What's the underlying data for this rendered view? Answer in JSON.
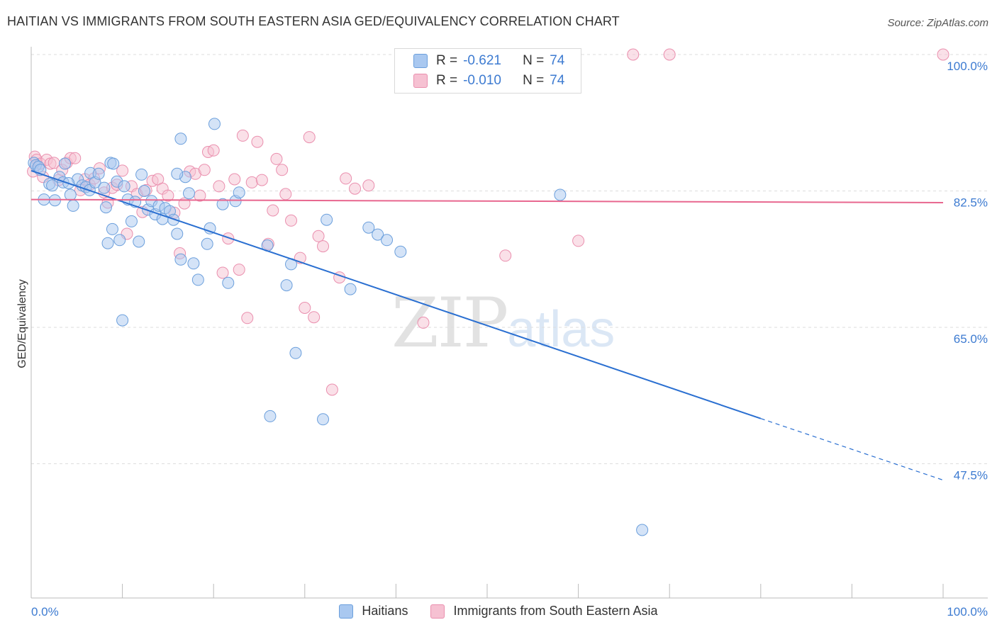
{
  "title": "HAITIAN VS IMMIGRANTS FROM SOUTH EASTERN ASIA GED/EQUIVALENCY CORRELATION CHART",
  "source": "Source: ZipAtlas.com",
  "watermark": {
    "zip": "ZIP",
    "atlas": "atlas"
  },
  "legend_top": [
    {
      "r_label": "R =",
      "r_value": "-0.621",
      "n_label": "N =",
      "n_value": "74"
    },
    {
      "r_label": "R =",
      "r_value": "-0.010",
      "n_label": "N =",
      "n_value": "74"
    }
  ],
  "colors": {
    "blue_fill": "#a9c8f0",
    "blue_stroke": "#6b9fdc",
    "blue_line": "#2a6fd1",
    "pink_fill": "#f6c1d2",
    "pink_stroke": "#ea8fae",
    "pink_line": "#e8678f",
    "tick_text": "#3d7bd1",
    "grid": "#dddddd"
  },
  "chart_data": {
    "type": "scatter",
    "title": "HAITIAN VS IMMIGRANTS FROM SOUTH EASTERN ASIA GED/EQUIVALENCY CORRELATION CHART",
    "xlabel": "",
    "ylabel": "GED/Equivalency",
    "xlim": [
      0,
      100
    ],
    "ylim": [
      35,
      102
    ],
    "x_tick_labels": [
      "0.0%",
      "100.0%"
    ],
    "y_ticks": [
      47.5,
      65.0,
      82.5,
      100.0
    ],
    "y_tick_labels": [
      "47.5%",
      "65.0%",
      "82.5%",
      "100.0%"
    ],
    "grid": "horizontal dashed",
    "legend_position": "bottom",
    "series": [
      {
        "name": "Haitians",
        "r": -0.621,
        "n": 74,
        "trend": {
          "x": [
            0,
            80
          ],
          "y": [
            85.1,
            53.3
          ],
          "dashed_to": [
            100,
            45.4
          ]
        },
        "points": [
          [
            0.3,
            86.1
          ],
          [
            0.5,
            85.8
          ],
          [
            0.8,
            85.6
          ],
          [
            1.0,
            85.2
          ],
          [
            1.4,
            81.4
          ],
          [
            2.0,
            83.4
          ],
          [
            2.3,
            83.2
          ],
          [
            2.6,
            81.3
          ],
          [
            3.1,
            84.3
          ],
          [
            3.5,
            83.6
          ],
          [
            3.7,
            86.0
          ],
          [
            4.3,
            82.0
          ],
          [
            4.6,
            80.6
          ],
          [
            5.1,
            84.0
          ],
          [
            5.6,
            83.2
          ],
          [
            6.0,
            83.0
          ],
          [
            6.4,
            82.6
          ],
          [
            6.5,
            84.8
          ],
          [
            7.0,
            83.6
          ],
          [
            7.4,
            84.7
          ],
          [
            8.0,
            82.9
          ],
          [
            8.2,
            80.4
          ],
          [
            8.4,
            75.8
          ],
          [
            8.7,
            86.1
          ],
          [
            8.9,
            77.6
          ],
          [
            9.4,
            83.7
          ],
          [
            9.7,
            76.2
          ],
          [
            10.0,
            65.9
          ],
          [
            10.2,
            83.1
          ],
          [
            10.6,
            81.4
          ],
          [
            11.0,
            78.6
          ],
          [
            11.4,
            81.1
          ],
          [
            11.8,
            76.0
          ],
          [
            12.1,
            84.6
          ],
          [
            12.4,
            82.5
          ],
          [
            12.8,
            80.1
          ],
          [
            13.2,
            81.2
          ],
          [
            13.6,
            79.5
          ],
          [
            14.0,
            80.6
          ],
          [
            14.4,
            78.9
          ],
          [
            14.7,
            80.3
          ],
          [
            15.2,
            79.9
          ],
          [
            15.6,
            78.8
          ],
          [
            16.0,
            77.0
          ],
          [
            16.4,
            73.7
          ],
          [
            16.9,
            84.3
          ],
          [
            17.3,
            82.2
          ],
          [
            17.8,
            73.2
          ],
          [
            18.3,
            71.1
          ],
          [
            19.3,
            75.7
          ],
          [
            19.6,
            77.7
          ],
          [
            20.1,
            91.1
          ],
          [
            21.0,
            80.8
          ],
          [
            21.6,
            70.7
          ],
          [
            22.4,
            81.2
          ],
          [
            22.8,
            82.3
          ],
          [
            25.9,
            75.5
          ],
          [
            28.0,
            70.4
          ],
          [
            28.5,
            73.1
          ],
          [
            29.0,
            61.7
          ],
          [
            32.4,
            78.8
          ],
          [
            35.0,
            69.9
          ],
          [
            37.0,
            77.8
          ],
          [
            38.0,
            76.9
          ],
          [
            39.0,
            76.2
          ],
          [
            40.5,
            74.7
          ],
          [
            26.2,
            53.6
          ],
          [
            32.0,
            53.2
          ],
          [
            58.0,
            82.0
          ],
          [
            67.0,
            39.0
          ],
          [
            16.0,
            84.7
          ],
          [
            4.1,
            83.5
          ],
          [
            9.0,
            86.0
          ],
          [
            16.4,
            89.2
          ]
        ]
      },
      {
        "name": "Immigrants from South Eastern Asia",
        "r": -0.01,
        "n": 74,
        "trend": {
          "x": [
            0,
            100
          ],
          "y": [
            81.4,
            81.0
          ]
        },
        "points": [
          [
            0.2,
            85.0
          ],
          [
            0.4,
            86.9
          ],
          [
            0.6,
            86.5
          ],
          [
            1.0,
            86.0
          ],
          [
            1.3,
            84.3
          ],
          [
            1.7,
            86.5
          ],
          [
            2.1,
            86.0
          ],
          [
            2.5,
            86.1
          ],
          [
            3.0,
            83.9
          ],
          [
            3.4,
            85.2
          ],
          [
            3.9,
            86.1
          ],
          [
            4.3,
            86.7
          ],
          [
            4.8,
            86.7
          ],
          [
            5.4,
            82.6
          ],
          [
            5.9,
            84.0
          ],
          [
            6.4,
            83.3
          ],
          [
            6.9,
            84.1
          ],
          [
            7.5,
            85.4
          ],
          [
            8.0,
            82.3
          ],
          [
            8.4,
            81.0
          ],
          [
            8.9,
            82.9
          ],
          [
            9.4,
            83.3
          ],
          [
            10.0,
            85.1
          ],
          [
            10.5,
            77.0
          ],
          [
            11.0,
            83.1
          ],
          [
            11.6,
            82.1
          ],
          [
            12.2,
            79.8
          ],
          [
            12.6,
            82.6
          ],
          [
            13.3,
            83.8
          ],
          [
            13.9,
            84.0
          ],
          [
            14.4,
            82.8
          ],
          [
            15.0,
            81.9
          ],
          [
            15.7,
            79.7
          ],
          [
            16.3,
            74.5
          ],
          [
            16.8,
            80.9
          ],
          [
            17.4,
            85.0
          ],
          [
            18.0,
            84.7
          ],
          [
            18.5,
            81.9
          ],
          [
            19.0,
            85.2
          ],
          [
            19.4,
            87.5
          ],
          [
            20.0,
            87.7
          ],
          [
            20.6,
            83.1
          ],
          [
            21.0,
            72.0
          ],
          [
            21.6,
            76.4
          ],
          [
            22.3,
            84.0
          ],
          [
            22.8,
            72.4
          ],
          [
            23.2,
            89.6
          ],
          [
            23.7,
            66.2
          ],
          [
            24.2,
            83.6
          ],
          [
            24.8,
            88.8
          ],
          [
            25.3,
            83.9
          ],
          [
            26.0,
            75.7
          ],
          [
            26.5,
            80.0
          ],
          [
            26.9,
            86.6
          ],
          [
            27.5,
            85.2
          ],
          [
            27.9,
            82.1
          ],
          [
            28.5,
            78.7
          ],
          [
            29.5,
            73.9
          ],
          [
            30.0,
            67.5
          ],
          [
            30.5,
            89.4
          ],
          [
            31.0,
            66.3
          ],
          [
            31.5,
            76.7
          ],
          [
            32.0,
            75.4
          ],
          [
            33.0,
            57.0
          ],
          [
            33.8,
            71.4
          ],
          [
            34.5,
            84.1
          ],
          [
            35.5,
            82.8
          ],
          [
            37.0,
            83.2
          ],
          [
            43.0,
            65.6
          ],
          [
            52.0,
            74.2
          ],
          [
            60.0,
            76.1
          ],
          [
            66.0,
            100.0
          ],
          [
            70.0,
            100.0
          ],
          [
            100.0,
            100.0
          ]
        ]
      }
    ]
  }
}
